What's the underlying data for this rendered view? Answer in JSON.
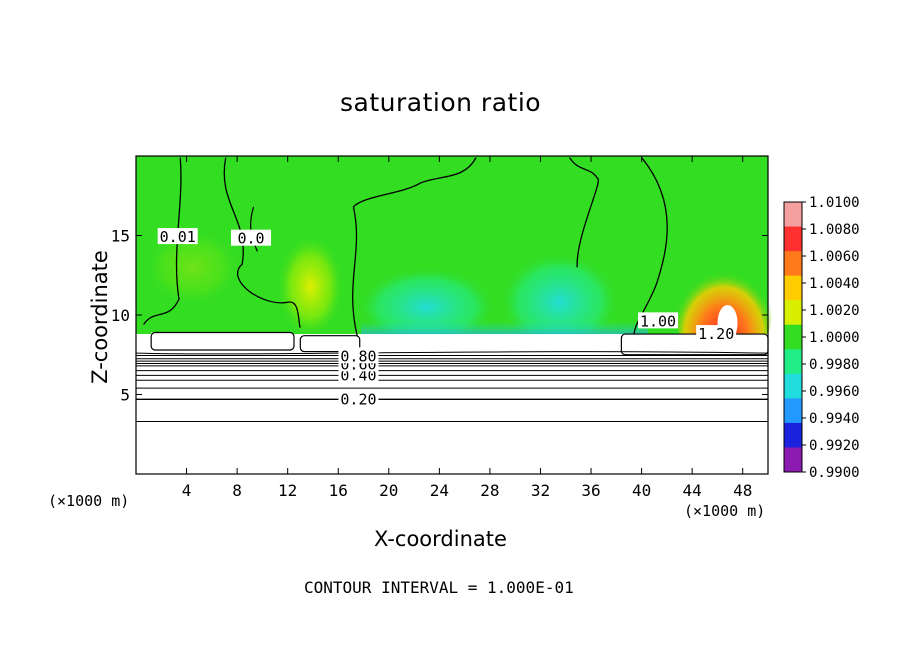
{
  "chart_data": {
    "type": "heatmap",
    "title": "saturation ratio",
    "xlabel": "X-coordinate",
    "ylabel": "Z-coordinate",
    "x_unit_left": "(×1000 m)",
    "x_unit_right": "(×1000 m)",
    "footnote": "CONTOUR INTERVAL = 1.000E-01",
    "xlim": [
      0,
      50
    ],
    "ylim": [
      0,
      20
    ],
    "x_ticks": [
      4,
      8,
      12,
      16,
      20,
      24,
      28,
      32,
      36,
      40,
      44,
      48
    ],
    "y_ticks": [
      5,
      10,
      15
    ],
    "colorbar": {
      "ticks": [
        "1.0100",
        "1.0080",
        "1.0060",
        "1.0040",
        "1.0020",
        "1.0000",
        "0.9980",
        "0.9960",
        "0.9940",
        "0.9920",
        "0.9900"
      ],
      "colors": [
        "#f4a0a0",
        "#ff3030",
        "#ff7a1a",
        "#ffcc00",
        "#d8f000",
        "#33dd22",
        "#22ee88",
        "#22dddd",
        "#2299ff",
        "#1a22dd",
        "#8a1ab0"
      ]
    },
    "contour_labels": [
      {
        "text": "0.20",
        "x": 17.6,
        "y": 4.7
      },
      {
        "text": "0.40",
        "x": 17.6,
        "y": 6.2
      },
      {
        "text": "0.60",
        "x": 17.6,
        "y": 6.9
      },
      {
        "text": "0.80",
        "x": 17.6,
        "y": 7.4
      },
      {
        "text": "1.20",
        "x": 45.9,
        "y": 8.8
      },
      {
        "text": "1.00",
        "x": 41.3,
        "y": 9.6
      },
      {
        "text": "0.01",
        "x": 3.3,
        "y": 14.9
      },
      {
        "text": "0.0",
        "x": 9.1,
        "y": 14.8
      }
    ]
  }
}
